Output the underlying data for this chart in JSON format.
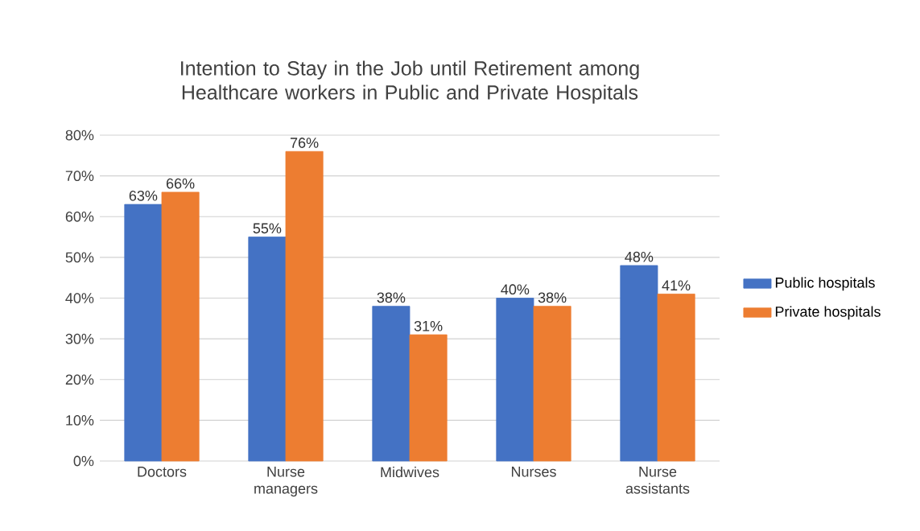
{
  "chart_data": {
    "type": "bar",
    "title": "Intention to Stay in the Job until Retirement among Healthcare workers in Public and Private Hospitals",
    "categories": [
      "Doctors",
      "Nurse managers",
      "Midwives",
      "Nurses",
      "Nurse assistants"
    ],
    "series": [
      {
        "name": "Public hospitals",
        "color": "#4472c4",
        "values": [
          63,
          55,
          38,
          40,
          48
        ],
        "value_labels": [
          "63%",
          "55%",
          "38%",
          "40%",
          "48%"
        ]
      },
      {
        "name": "Private hospitals",
        "color": "#ed7d31",
        "values": [
          66,
          76,
          31,
          38,
          41
        ],
        "value_labels": [
          "66%",
          "76%",
          "31%",
          "38%",
          "41%"
        ]
      }
    ],
    "ylim": [
      0,
      80
    ],
    "yticks": [
      {
        "value": 0,
        "label": "0%"
      },
      {
        "value": 10,
        "label": "10%"
      },
      {
        "value": 20,
        "label": "20%"
      },
      {
        "value": 30,
        "label": "30%"
      },
      {
        "value": 40,
        "label": "40%"
      },
      {
        "value": 50,
        "label": "50%"
      },
      {
        "value": 60,
        "label": "60%"
      },
      {
        "value": 70,
        "label": "70%"
      },
      {
        "value": 80,
        "label": "80%"
      }
    ],
    "grid": "y",
    "legend": "right"
  }
}
